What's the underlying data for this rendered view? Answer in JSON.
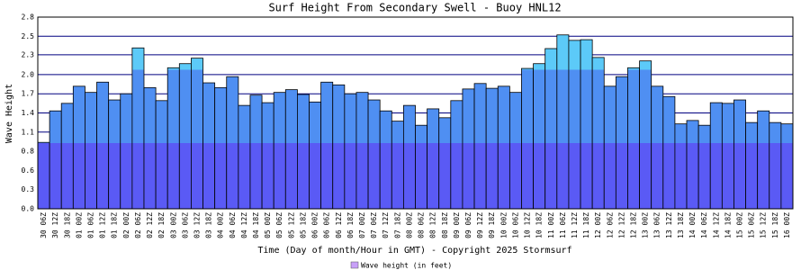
{
  "chart_data": {
    "type": "bar",
    "title": "Surf Height From Secondary Swell - Buoy HNL12",
    "y_label": "Wave Height",
    "x_label": "Time (Day of month/Hour in GMT) - Copyright 2025 Stormsurf",
    "categories": [
      "30 06Z",
      "30 12Z",
      "30 18Z",
      "01 00Z",
      "01 06Z",
      "01 12Z",
      "01 18Z",
      "02 00Z",
      "02 06Z",
      "02 12Z",
      "02 18Z",
      "03 00Z",
      "03 06Z",
      "03 12Z",
      "03 18Z",
      "04 00Z",
      "04 06Z",
      "04 12Z",
      "04 18Z",
      "05 00Z",
      "05 06Z",
      "05 12Z",
      "05 18Z",
      "06 00Z",
      "06 06Z",
      "06 12Z",
      "06 18Z",
      "07 00Z",
      "07 06Z",
      "07 12Z",
      "07 18Z",
      "08 00Z",
      "08 06Z",
      "08 12Z",
      "08 18Z",
      "09 00Z",
      "09 06Z",
      "09 12Z",
      "09 18Z",
      "10 00Z",
      "10 06Z",
      "10 12Z",
      "10 18Z",
      "11 00Z",
      "11 06Z",
      "11 12Z",
      "11 18Z",
      "12 00Z",
      "12 06Z",
      "12 12Z",
      "12 18Z",
      "13 00Z",
      "13 06Z",
      "13 12Z",
      "13 18Z",
      "14 00Z",
      "14 06Z",
      "14 12Z",
      "14 18Z",
      "15 00Z",
      "15 06Z",
      "15 12Z",
      "15 18Z",
      "16 00Z"
    ],
    "series": [
      {
        "name": "Wave height (in feet)",
        "color": "#c8a0f8",
        "values": [
          0.97,
          1.43,
          1.54,
          1.79,
          1.7,
          1.85,
          1.59,
          1.68,
          2.35,
          1.77,
          1.58,
          2.06,
          2.12,
          2.2,
          1.84,
          1.77,
          1.93,
          1.51,
          1.66,
          1.55,
          1.7,
          1.74,
          1.67,
          1.56,
          1.85,
          1.81,
          1.68,
          1.7,
          1.59,
          1.43,
          1.28,
          1.51,
          1.22,
          1.46,
          1.33,
          1.58,
          1.75,
          1.83,
          1.76,
          1.79,
          1.7,
          2.05,
          2.12,
          2.34,
          2.54,
          2.46,
          2.47,
          2.21,
          1.79,
          1.93,
          2.06,
          2.16,
          1.79,
          1.64,
          1.24,
          1.29,
          1.22,
          1.55,
          1.54,
          1.59,
          1.26,
          1.43,
          1.26,
          1.24
        ]
      }
    ],
    "color_bands": [
      {
        "above": 0,
        "color": "#5a5af5"
      },
      {
        "above": 0.96,
        "color": "#4f8ff2"
      },
      {
        "above": 2.03,
        "color": "#5ccaf8"
      }
    ],
    "ylim": [
      0,
      2.8
    ],
    "yticks": [
      {
        "value": 0,
        "label": "0.0"
      },
      {
        "value": 0.28,
        "label": "0.3"
      },
      {
        "value": 0.56,
        "label": "0.6"
      },
      {
        "value": 0.84,
        "label": "0.8"
      },
      {
        "value": 1.12,
        "label": "1.1"
      },
      {
        "value": 1.4,
        "label": "1.4"
      },
      {
        "value": 1.68,
        "label": "1.7"
      },
      {
        "value": 1.96,
        "label": "2.0"
      },
      {
        "value": 2.25,
        "label": "2.3"
      },
      {
        "value": 2.52,
        "label": "2.5"
      },
      {
        "value": 2.8,
        "label": "2.8"
      }
    ],
    "grid": true,
    "grid_color": "#000080"
  }
}
